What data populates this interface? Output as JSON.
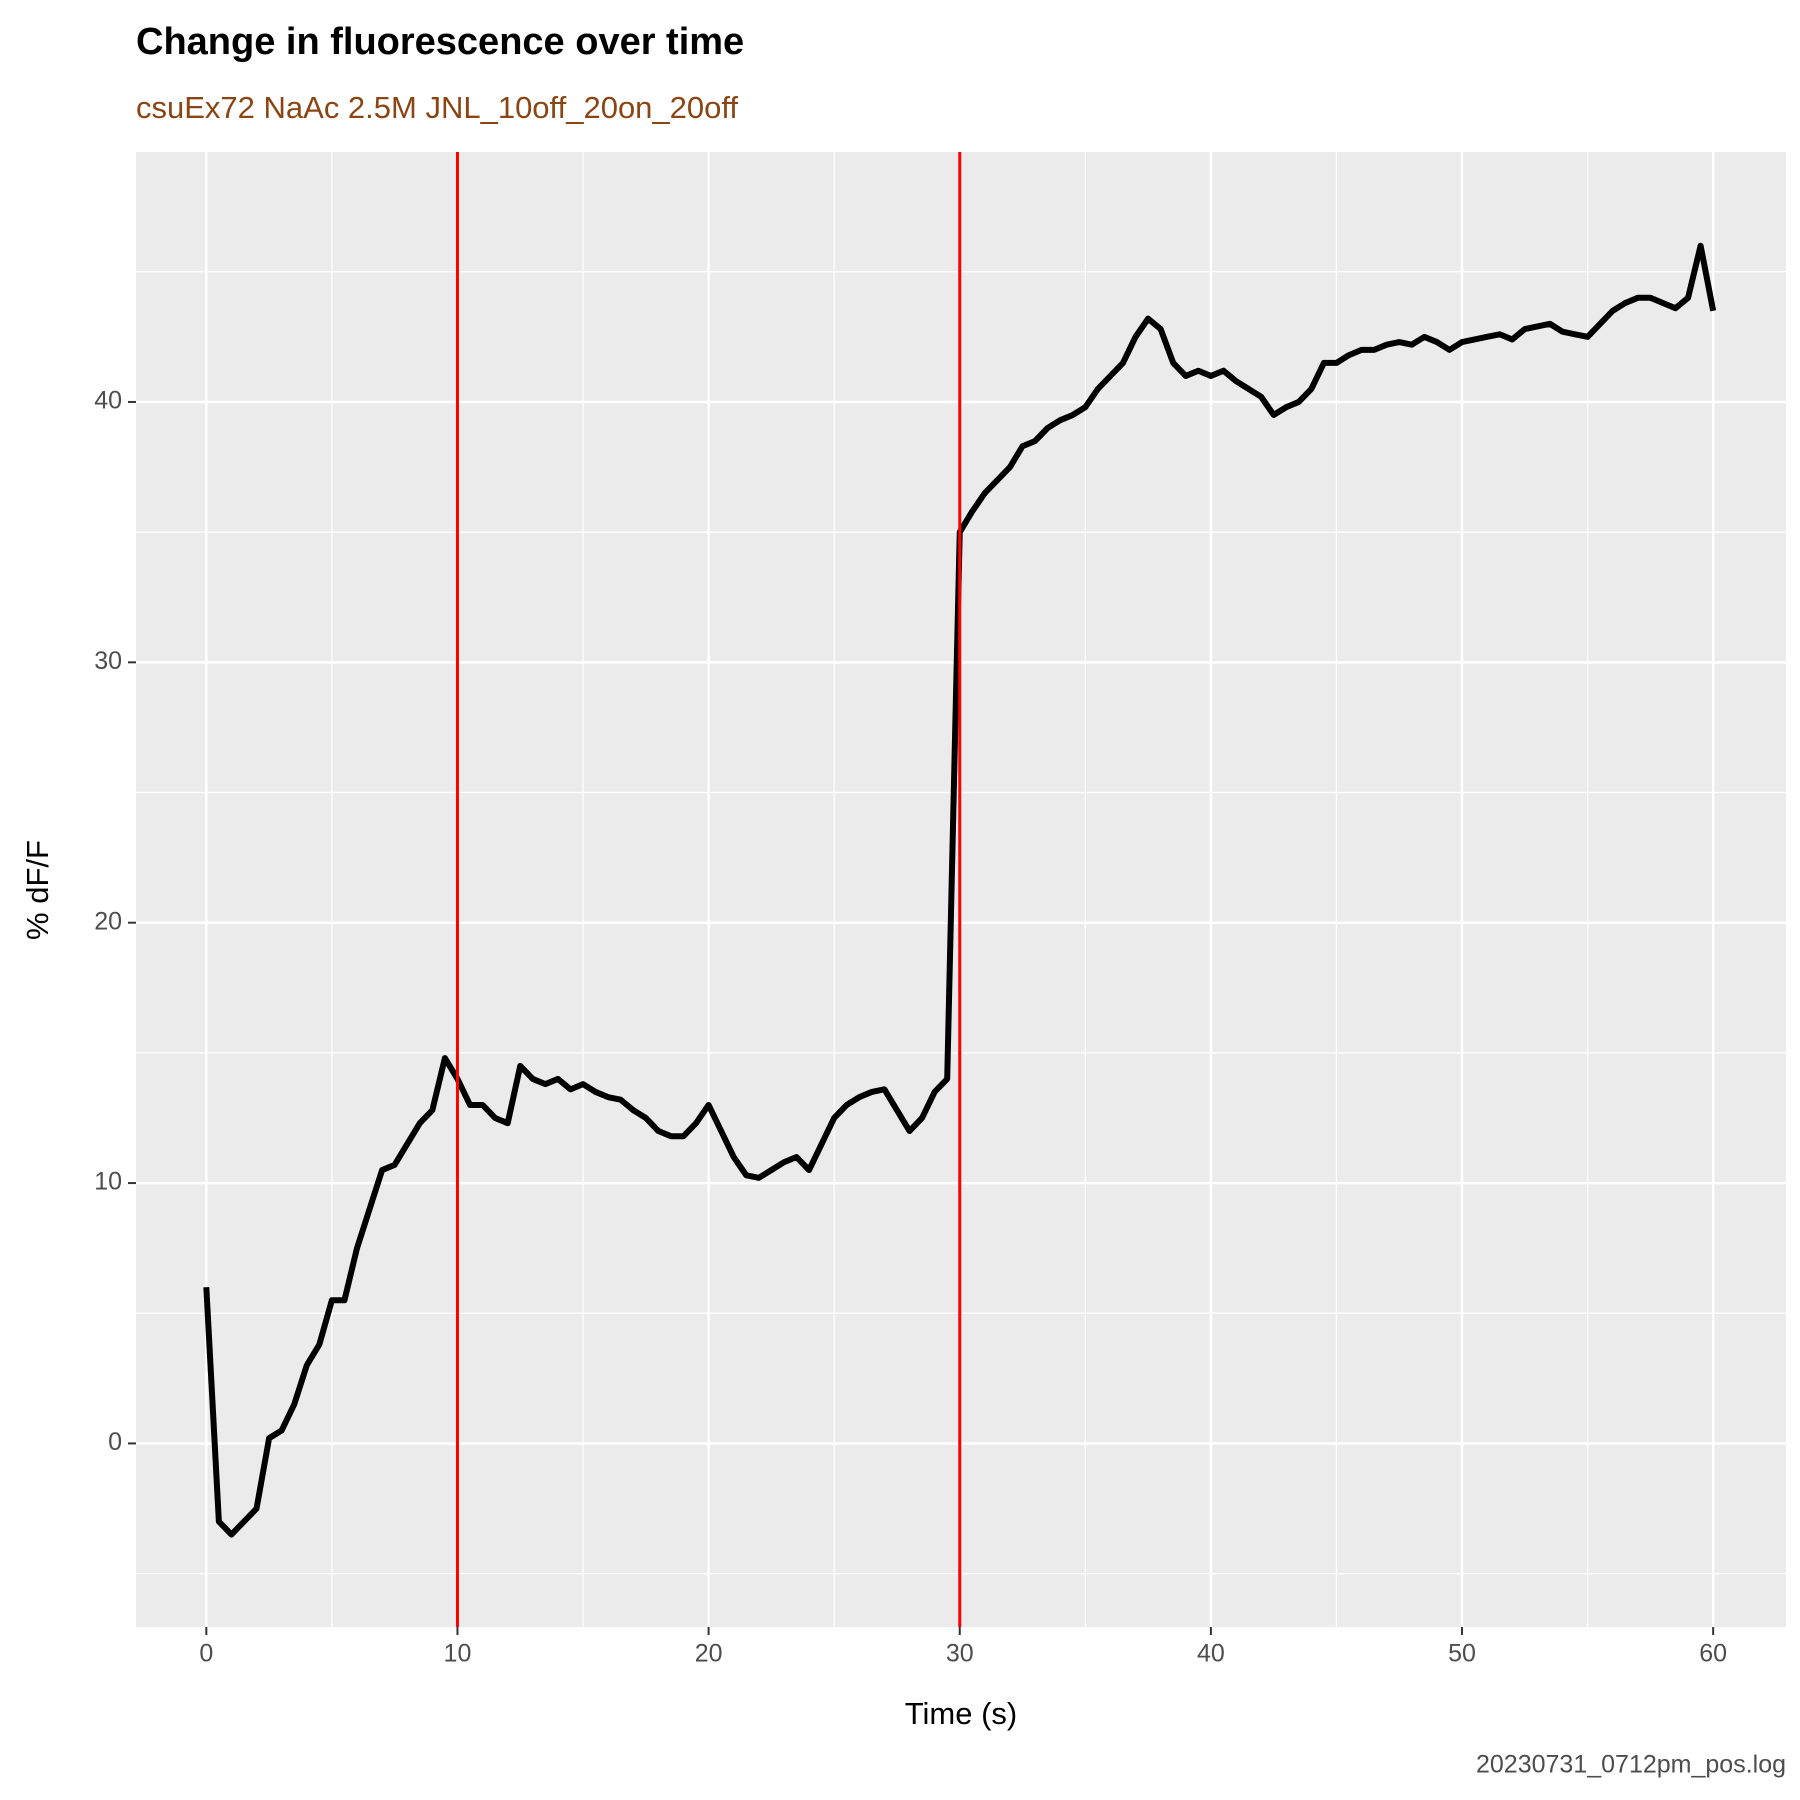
{
  "chart_data": {
    "type": "line",
    "title": "Change in fluorescence over time",
    "subtitle": "csuEx72 NaAc 2.5M JNL_10off_20on_20off",
    "xlabel": "Time (s)",
    "ylabel": "% dF/F",
    "caption": "20230731_0712pm_pos.log",
    "xlim": [
      -2.8,
      62.9
    ],
    "ylim": [
      -7.05,
      49.6
    ],
    "xticks": [
      0,
      10,
      20,
      30,
      40,
      50,
      60
    ],
    "yticks": [
      0,
      10,
      20,
      30,
      40
    ],
    "x_minor_grid": [
      5,
      15,
      25,
      35,
      45,
      55
    ],
    "y_minor_grid": [
      -5,
      5,
      15,
      25,
      35,
      45
    ],
    "grid": true,
    "vlines": [
      10,
      30
    ],
    "vline_color": "#ff0000",
    "x": [
      0,
      0.5,
      1,
      1.5,
      2,
      2.5,
      3,
      3.5,
      4,
      4.5,
      5,
      5.5,
      6,
      6.5,
      7,
      7.5,
      8,
      8.5,
      9,
      9.5,
      10,
      10.5,
      11,
      11.5,
      12,
      12.5,
      13,
      13.5,
      14,
      14.5,
      15,
      15.5,
      16,
      16.5,
      17,
      17.5,
      18,
      18.5,
      19,
      19.5,
      20,
      20.5,
      21,
      21.5,
      22,
      22.5,
      23,
      23.5,
      24,
      24.5,
      25,
      25.5,
      26,
      26.5,
      27,
      27.5,
      28,
      28.5,
      29,
      29.5,
      30,
      30.5,
      31,
      31.5,
      32,
      32.5,
      33,
      33.5,
      34,
      34.5,
      35,
      35.5,
      36,
      36.5,
      37,
      37.5,
      38,
      38.5,
      39,
      39.5,
      40,
      40.5,
      41,
      41.5,
      42,
      42.5,
      43,
      43.5,
      44,
      44.5,
      45,
      45.5,
      46,
      46.5,
      47,
      47.5,
      48,
      48.5,
      49,
      49.5,
      50,
      50.5,
      51,
      51.5,
      52,
      52.5,
      53,
      53.5,
      54,
      54.5,
      55,
      55.5,
      56,
      56.5,
      57,
      57.5,
      58,
      58.5,
      59,
      59.5,
      60
    ],
    "series": [
      {
        "name": "dF/F",
        "color": "#000000",
        "values": [
          6,
          -3,
          -3.5,
          -3,
          -2.5,
          0.2,
          0.5,
          1.5,
          3,
          3.8,
          5.5,
          5.5,
          7.5,
          9,
          10.5,
          10.7,
          11.5,
          12.3,
          12.8,
          14.8,
          14,
          13,
          13,
          12.5,
          12.3,
          14.5,
          14,
          13.8,
          14,
          13.6,
          13.8,
          13.5,
          13.3,
          13.2,
          12.8,
          12.5,
          12,
          11.8,
          11.8,
          12.3,
          13,
          12,
          11,
          10.3,
          10.2,
          10.5,
          10.8,
          11,
          10.5,
          11.5,
          12.5,
          13,
          13.3,
          13.5,
          13.6,
          12.8,
          12,
          12.5,
          13.5,
          14,
          35,
          35.8,
          36.5,
          37,
          37.5,
          38.3,
          38.5,
          39,
          39.3,
          39.5,
          39.8,
          40.5,
          41,
          41.5,
          42.5,
          43.2,
          42.8,
          41.5,
          41,
          41.2,
          41,
          41.2,
          40.8,
          40.5,
          40.2,
          39.5,
          39.8,
          40,
          40.5,
          41.5,
          41.5,
          41.8,
          42,
          42,
          42.2,
          42.3,
          42.2,
          42.5,
          42.3,
          42,
          42.3,
          42.4,
          42.5,
          42.6,
          42.4,
          42.8,
          42.9,
          43,
          42.7,
          42.6,
          42.5,
          43,
          43.5,
          43.8,
          44,
          44,
          43.8,
          43.6,
          44,
          46,
          43.5
        ]
      }
    ]
  }
}
